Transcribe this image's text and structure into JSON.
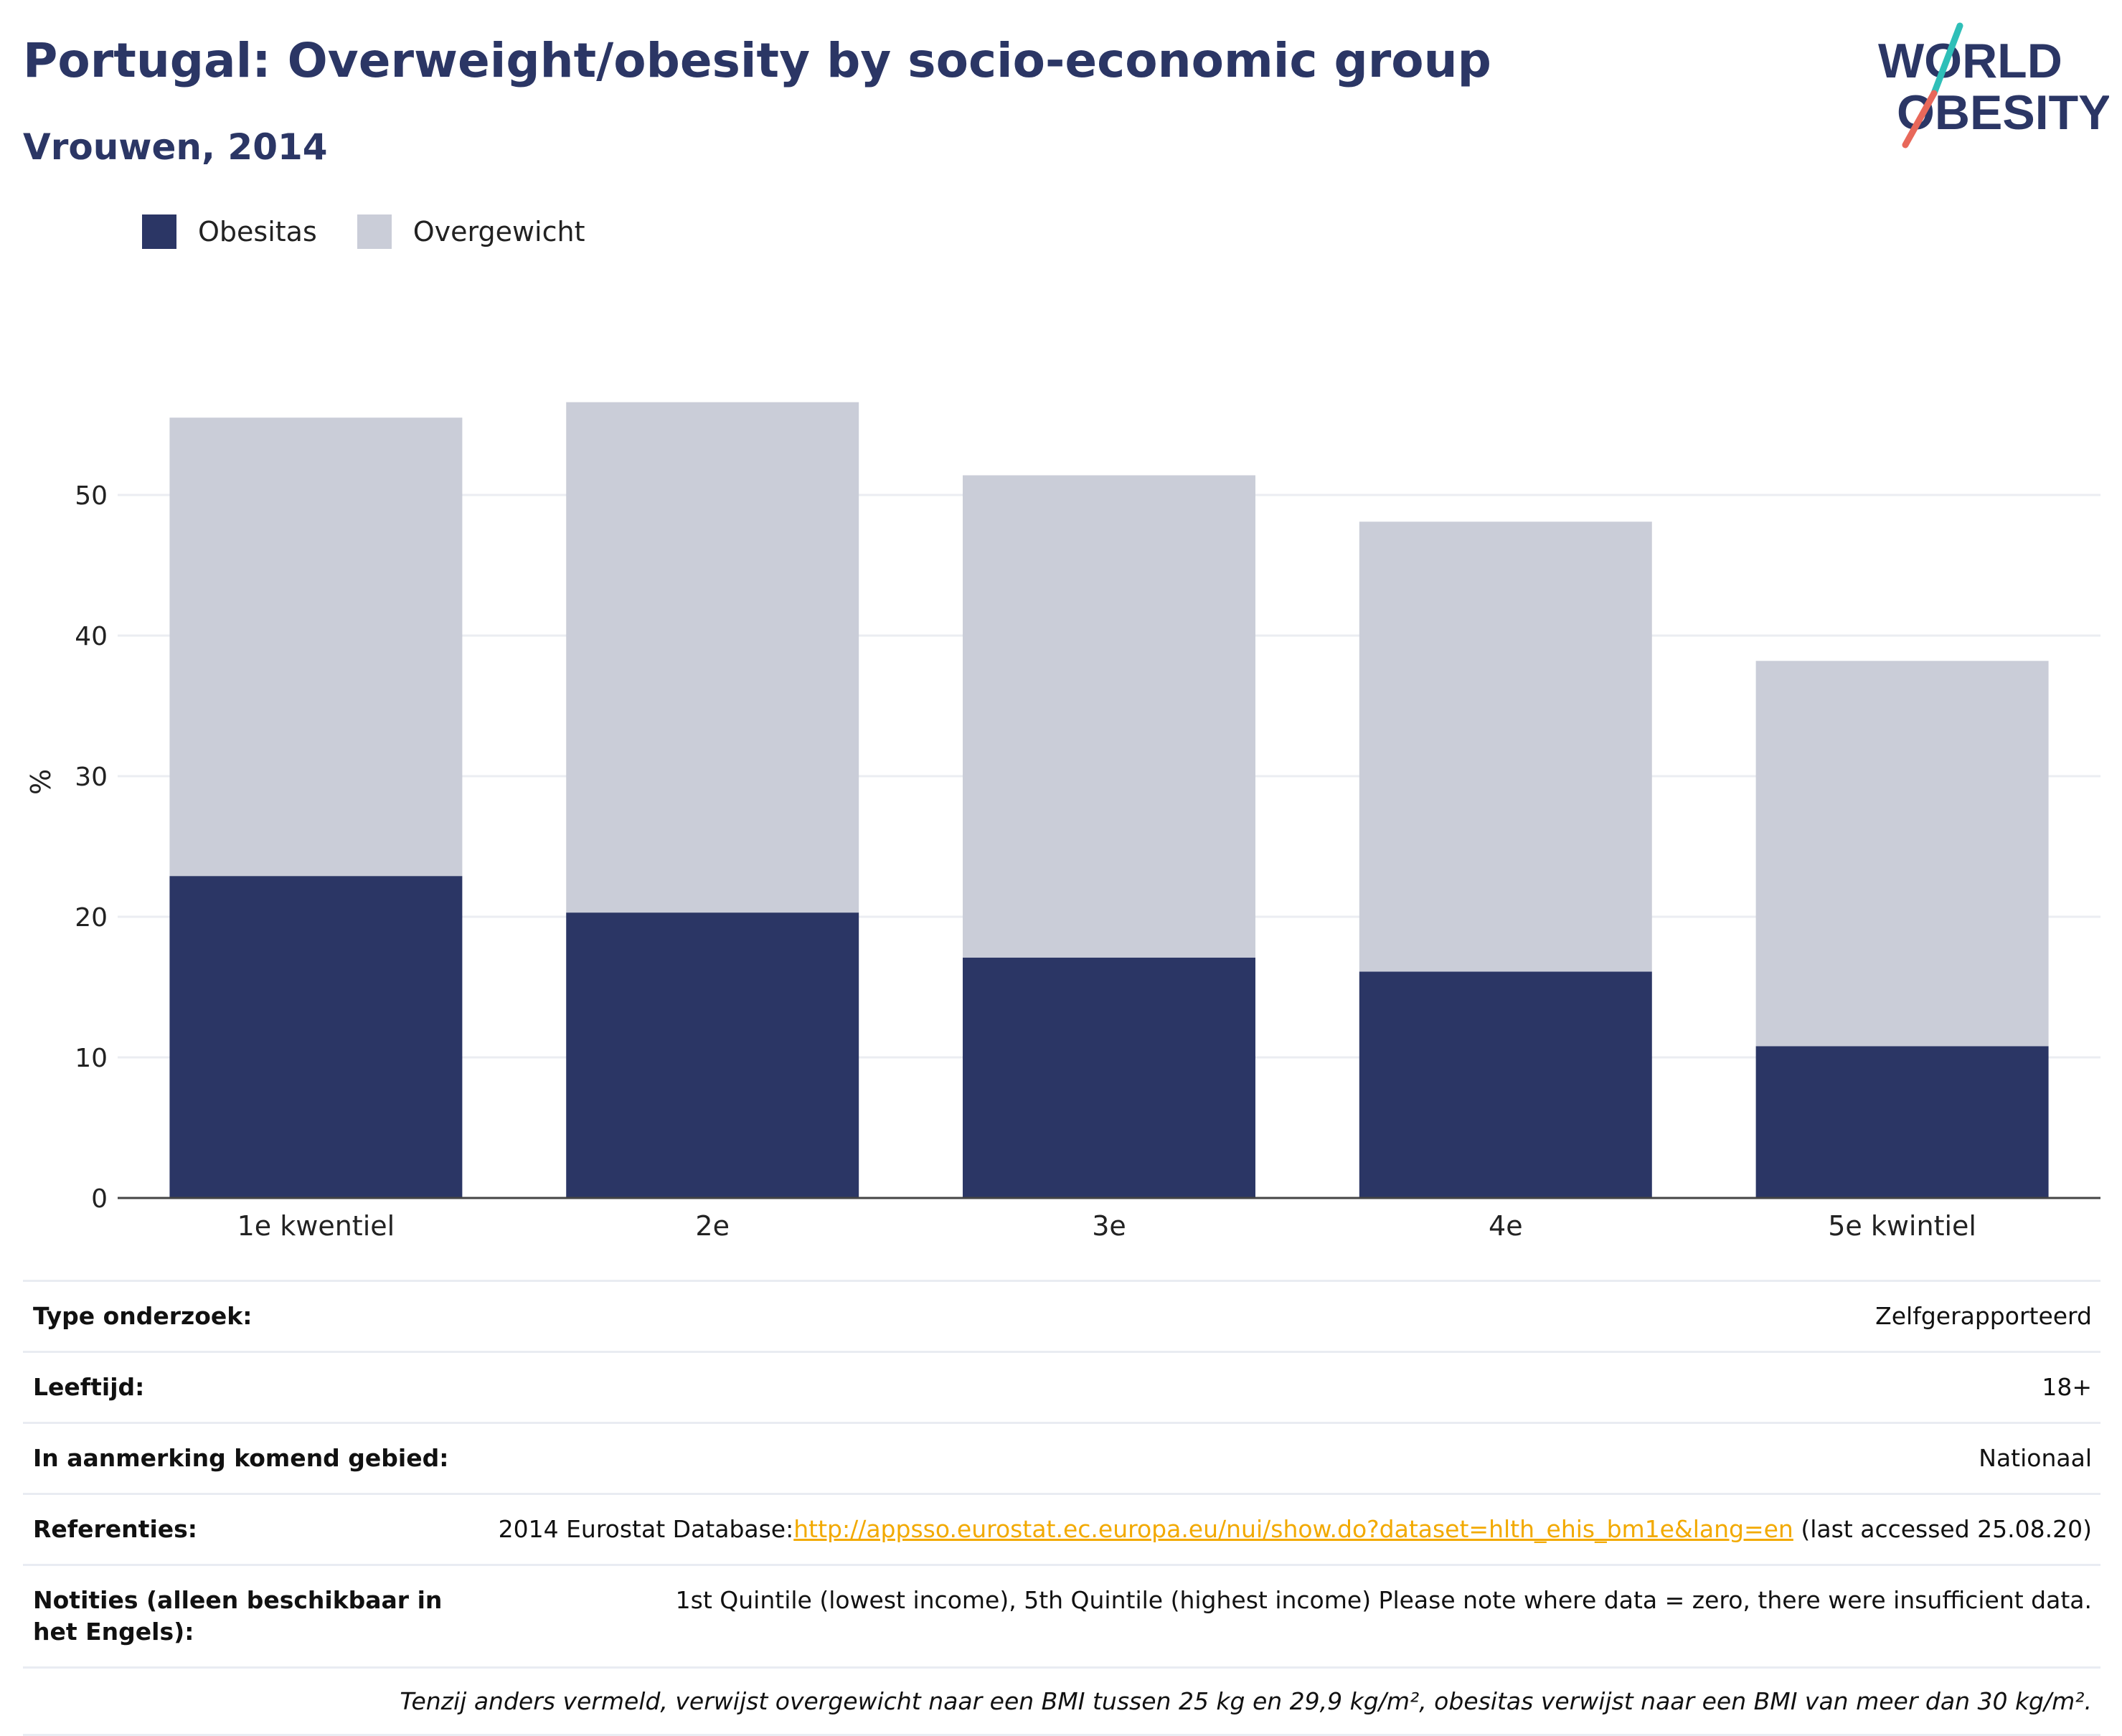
{
  "header": {
    "title": "Portugal: Overweight/obesity by socio-economic group",
    "subtitle": "Vrouwen, 2014",
    "logo_line1": "WORLD",
    "logo_line2": "OBESITY"
  },
  "colors": {
    "obesity": "#2b3665",
    "overweight": "#cacdd8",
    "accent_teal": "#2fbfb8",
    "accent_red": "#e8685a",
    "link": "#f2a900"
  },
  "chart_data": {
    "type": "bar",
    "stacked": true,
    "categories": [
      "1e kwentiel",
      "2e",
      "3e",
      "4e",
      "5e kwintiel"
    ],
    "series": [
      {
        "name": "Obesitas",
        "values": [
          22.9,
          20.3,
          17.1,
          16.1,
          10.8
        ]
      },
      {
        "name": "Overgewicht",
        "values": [
          32.6,
          36.3,
          34.3,
          32.0,
          27.4
        ]
      }
    ],
    "ylabel": "%",
    "ylim": [
      0,
      58
    ],
    "yticks": [
      0,
      10,
      20,
      30,
      40,
      50
    ],
    "grid": true,
    "legend_position": "top-left"
  },
  "info": {
    "survey_label": "Type onderzoek:",
    "survey_value": "Zelfgerapporteerd",
    "age_label": "Leeftijd:",
    "age_value": "18+",
    "area_label": "In aanmerking komend gebied:",
    "area_value": "Nationaal",
    "ref_label": "Referenties:",
    "ref_prefix": "2014 Eurostat Database:",
    "ref_link": "http://appsso.eurostat.ec.europa.eu/nui/show.do?dataset=hlth_ehis_bm1e&lang=en",
    "ref_suffix": " (last accessed 25.08.20)",
    "notes_label": "Notities (alleen beschikbaar in het Engels):",
    "notes_value": "1st Quintile (lowest income), 5th Quintile (highest income) Please note where data = zero, there were insufficient data.",
    "footnote": "Tenzij anders vermeld, verwijst overgewicht naar een BMI tussen 25 kg en 29,9 kg/m², obesitas verwijst naar een BMI van meer dan 30 kg/m²."
  }
}
